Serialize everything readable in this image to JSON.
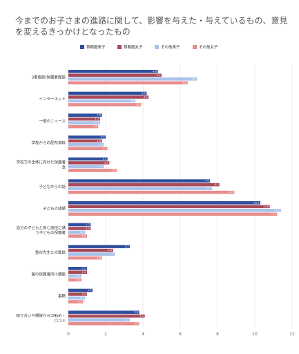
{
  "chart_data": {
    "type": "bar",
    "orientation": "horizontal",
    "title": "今までのお子さまの進路に関して、影響を与えた・与えているもの、意見を変えるきっかけとなったもの",
    "categories": [
      "3者面談/保護者面談",
      "インターネット",
      "一般のニュース",
      "学校からの配布資料",
      "学校での全体に向けた保護者会",
      "子どもからの話",
      "子どもの成績",
      "自分の子どもと同じ高校に通う子どもの保護者",
      "塾の先生との面談",
      "塾の保護者向け講座",
      "書籍",
      "知り合いや親族からの勧め・口コミ"
    ],
    "series": [
      {
        "name": "首都圏男子",
        "color": "#2f4f9e",
        "values": [
          4.8,
          4.2,
          1.8,
          2.0,
          2.1,
          7.6,
          10.3,
          1.2,
          3.3,
          1.0,
          1.3,
          3.8
        ]
      },
      {
        "name": "首都圏女子",
        "color": "#a84a5a",
        "values": [
          5.0,
          4.3,
          1.7,
          1.8,
          2.2,
          8.1,
          10.8,
          1.2,
          2.4,
          1.0,
          1.0,
          4.1
        ]
      },
      {
        "name": "その他男子",
        "color": "#a9c2ea",
        "values": [
          6.9,
          3.6,
          1.7,
          1.9,
          1.9,
          7.7,
          11.4,
          0.9,
          2.5,
          0.7,
          0.9,
          3.3
        ]
      },
      {
        "name": "その他女子",
        "color": "#e88c8c",
        "values": [
          6.4,
          3.9,
          1.6,
          2.1,
          2.6,
          8.9,
          11.2,
          1.0,
          1.8,
          0.7,
          0.8,
          3.8
        ]
      }
    ],
    "xlim": [
      0,
      12
    ],
    "xticks": [
      "0",
      "2",
      "4",
      "6",
      "8",
      "10",
      "12"
    ],
    "grid": true,
    "legend_position": "top"
  }
}
